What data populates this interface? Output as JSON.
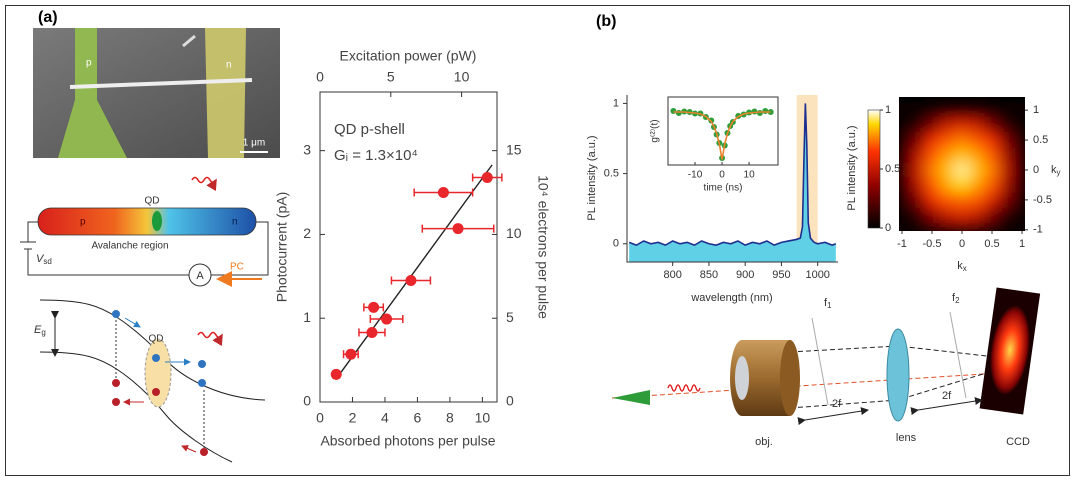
{
  "panels": {
    "a": {
      "label": "(a)"
    },
    "b": {
      "label": "(b)"
    }
  },
  "sem_image": {
    "p_label": "p",
    "n_label": "n",
    "scale_bar": "1 μm"
  },
  "device_schematic": {
    "p_label": "p",
    "qd_label": "QD",
    "n_label": "n",
    "region_label": "Avalanche region",
    "voltage_label": "V",
    "voltage_sub": "sd",
    "ammeter_label": "A",
    "current_label": "PC"
  },
  "band_diagram": {
    "gap_label": "E",
    "gap_sub": "g",
    "qd_label": "QD"
  },
  "optical_setup": {
    "objective_label": "obj.",
    "lens_label": "lens",
    "camera_label": "CCD",
    "focal_1": "f",
    "focal_1_sub": "1",
    "focal_2": "f",
    "focal_2_sub": "2",
    "distance_1": "2f",
    "distance_2": "2f"
  },
  "chart_data": [
    {
      "type": "scatter",
      "xlabel": "Absorbed photons per pulse",
      "x2label": "Excitation power (pW)",
      "ylabel": "Photocurrent (pA)",
      "y2label": "10⁴ electrons per pulse",
      "annotations": [
        "QD p-shell",
        "Gᵢ = 1.3×10⁴"
      ],
      "xlim": [
        0,
        10.9
      ],
      "xticks": [
        0,
        2,
        4,
        6,
        8,
        10
      ],
      "x2lim": [
        0,
        12.5
      ],
      "x2ticks": [
        0,
        5,
        10
      ],
      "ylim": [
        0,
        3.7
      ],
      "yticks": [
        0,
        1,
        2,
        3
      ],
      "y2lim": [
        0,
        18.5
      ],
      "y2ticks": [
        0,
        5,
        10,
        15
      ],
      "series": [
        {
          "color": "#e8262b",
          "x": [
            1.0,
            1.9,
            3.2,
            3.3,
            4.1,
            5.6,
            8.5,
            7.6,
            10.3
          ],
          "values": [
            0.33,
            0.57,
            0.83,
            1.13,
            0.99,
            1.45,
            2.07,
            2.5,
            2.68
          ],
          "xerr": [
            0.2,
            0.45,
            0.8,
            0.6,
            1.0,
            1.2,
            2.2,
            1.8,
            0.9
          ]
        }
      ],
      "fit": {
        "color": "#222222",
        "x": [
          1.05,
          10.6
        ],
        "values": [
          0.29,
          2.83
        ]
      }
    },
    {
      "type": "line",
      "xlabel": "wavelength (nm)",
      "ylabel": "PL intensity (a.u.)",
      "xlim": [
        737,
        1028
      ],
      "xticks": [
        800,
        850,
        900,
        950,
        1000
      ],
      "ylim": [
        -0.13,
        1.06
      ],
      "yticks": [
        0,
        0.5,
        1
      ],
      "highlight": [
        971,
        1000
      ],
      "highlight_color": "#fbe4bd",
      "fill_color": "#5fd0e6",
      "series": [
        {
          "color": "#1f2f8f",
          "x": [
            740,
            750,
            760,
            770,
            780,
            790,
            800,
            810,
            820,
            830,
            840,
            850,
            860,
            870,
            880,
            890,
            900,
            910,
            920,
            930,
            940,
            950,
            960,
            970,
            976,
            979,
            981,
            983,
            985,
            987,
            990,
            995,
            1000,
            1010,
            1020,
            1025
          ],
          "values": [
            0.01,
            -0.01,
            0.02,
            0.0,
            0.01,
            -0.01,
            0.02,
            0.0,
            0.01,
            -0.01,
            0.02,
            0.0,
            -0.01,
            0.01,
            0.0,
            0.02,
            -0.01,
            0.01,
            0.0,
            0.02,
            -0.01,
            0.01,
            0.02,
            0.03,
            0.04,
            0.12,
            0.6,
            1.0,
            0.7,
            0.15,
            0.04,
            0.01,
            0.0,
            0.01,
            -0.01,
            0.0
          ]
        }
      ]
    },
    {
      "type": "scatter",
      "xlabel": "time (ns)",
      "ylabel": "g⁽²⁾(t)",
      "xlim": [
        -20,
        20.7
      ],
      "xticks": [
        -10,
        0,
        10
      ],
      "ylim": [
        -0.06,
        1.3
      ],
      "series": [
        {
          "color": "#2e9e3a",
          "x": [
            -18,
            -16,
            -14,
            -12,
            -10,
            -8,
            -6,
            -4,
            -3,
            -2,
            -1,
            0,
            1,
            2,
            3,
            4,
            6,
            8,
            10,
            12,
            14,
            16,
            18
          ],
          "values": [
            1.02,
            0.98,
            1.01,
            1.0,
            0.97,
            0.97,
            0.9,
            0.83,
            0.7,
            0.55,
            0.38,
            0.08,
            0.33,
            0.58,
            0.72,
            0.8,
            0.92,
            0.95,
            0.99,
            1.01,
            0.98,
            1.02,
            1.0
          ]
        }
      ],
      "fit": {
        "color": "#e8822b",
        "x": [
          -18,
          -16,
          -14,
          -12,
          -10,
          -8,
          -6,
          -4,
          -3,
          -2,
          -1,
          0,
          1,
          2,
          3,
          4,
          6,
          8,
          10,
          12,
          14,
          16,
          18
        ],
        "values": [
          1.0,
          1.0,
          1.0,
          0.99,
          0.98,
          0.96,
          0.91,
          0.81,
          0.71,
          0.57,
          0.36,
          0.05,
          0.36,
          0.57,
          0.71,
          0.81,
          0.91,
          0.96,
          0.98,
          0.99,
          1.0,
          1.0,
          1.0
        ]
      }
    },
    {
      "type": "heatmap",
      "xlabel": "k",
      "xlabel_sub": "x",
      "ylabel": "k",
      "ylabel_sub": "y",
      "xlim": [
        -1.05,
        1.05
      ],
      "xticks": [
        -1,
        -0.5,
        0,
        0.5,
        1
      ],
      "ylim": [
        -1.02,
        1.22
      ],
      "yticks": [
        -1,
        -0.5,
        0,
        0.5,
        1
      ],
      "x": [
        -1,
        -0.75,
        -0.5,
        -0.25,
        0,
        0.25,
        0.5,
        0.75,
        1
      ],
      "y": [
        1,
        0.75,
        0.5,
        0.25,
        0,
        -0.25,
        -0.5,
        -0.75,
        -1
      ],
      "z": [
        [
          0.02,
          0.03,
          0.05,
          0.08,
          0.1,
          0.08,
          0.05,
          0.03,
          0.02
        ],
        [
          0.03,
          0.08,
          0.3,
          0.5,
          0.55,
          0.5,
          0.3,
          0.08,
          0.03
        ],
        [
          0.05,
          0.3,
          0.6,
          0.7,
          0.75,
          0.7,
          0.6,
          0.3,
          0.05
        ],
        [
          0.08,
          0.45,
          0.7,
          0.8,
          0.85,
          0.8,
          0.7,
          0.4,
          0.07
        ],
        [
          0.1,
          0.5,
          0.75,
          0.85,
          0.95,
          0.85,
          0.75,
          0.45,
          0.08
        ],
        [
          0.08,
          0.45,
          0.7,
          0.82,
          0.88,
          0.8,
          0.7,
          0.4,
          0.07
        ],
        [
          0.05,
          0.3,
          0.6,
          0.7,
          0.72,
          0.7,
          0.55,
          0.3,
          0.05
        ],
        [
          0.03,
          0.1,
          0.35,
          0.5,
          0.55,
          0.5,
          0.3,
          0.08,
          0.03
        ],
        [
          0.02,
          0.03,
          0.06,
          0.1,
          0.12,
          0.1,
          0.05,
          0.03,
          0.02
        ]
      ],
      "colorbar": {
        "label": "PL intensity (a.u.)",
        "lim": [
          0,
          1
        ],
        "ticks": [
          0,
          0.5,
          1
        ]
      }
    }
  ]
}
